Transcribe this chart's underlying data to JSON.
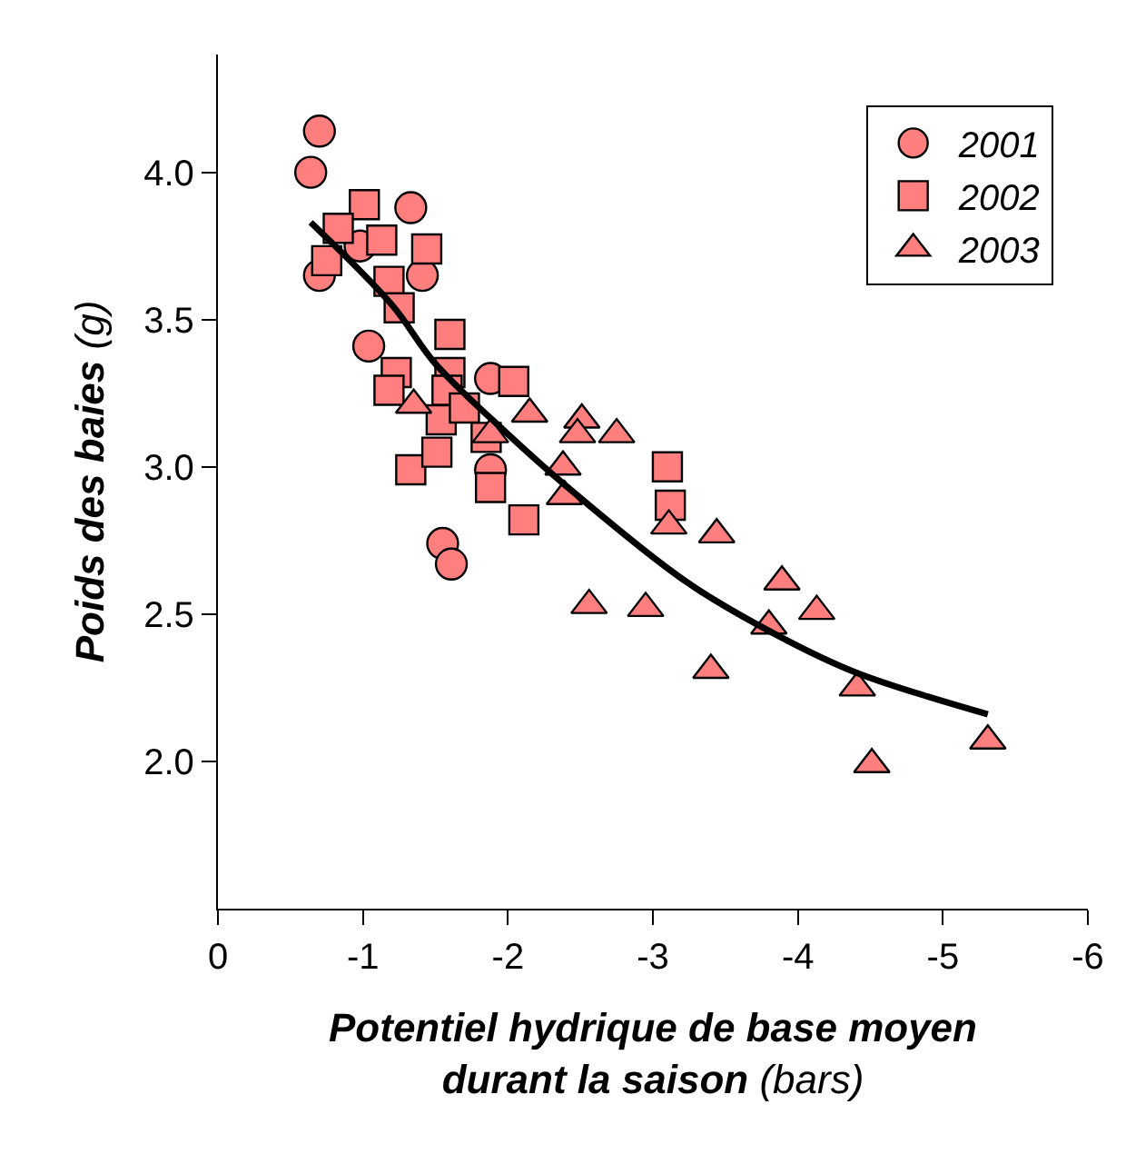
{
  "chart_data": {
    "type": "scatter",
    "xlabel": "Potentiel hydrique de base moyen durant la saison (bars)",
    "ylabel": "Poids des baies (g)",
    "xlim": [
      0,
      -6
    ],
    "xticks": [
      0,
      -1,
      -2,
      -3,
      -4,
      -5,
      -6
    ],
    "ylim": [
      1.5,
      4.4
    ],
    "yticks": [
      {
        "value": 2.0,
        "label": "2.0"
      },
      {
        "value": 2.5,
        "label": "2.5"
      },
      {
        "value": 3.0,
        "label": "3.0"
      },
      {
        "value": 3.5,
        "label": "3.5"
      },
      {
        "value": 4.0,
        "label": "4.0"
      }
    ],
    "legend": "top right",
    "series": [
      {
        "name": "2001",
        "color": "#ff7f7f",
        "marker": "circle",
        "x": [
          -0.64,
          -0.7,
          -0.7,
          -1.04,
          -1.33,
          -1.41,
          -1.55,
          -1.61,
          -1.88,
          -1.88,
          -0.98
        ],
        "values": [
          4.0,
          4.14,
          3.65,
          3.41,
          3.88,
          3.65,
          2.74,
          2.67,
          3.3,
          2.99,
          3.75
        ]
      },
      {
        "name": "2002",
        "color": "#ff7f7f",
        "marker": "square",
        "x": [
          -1.01,
          -0.83,
          -1.13,
          -1.18,
          -1.25,
          -1.44,
          -1.6,
          -1.6,
          -1.23,
          -1.18,
          -1.33,
          -1.54,
          -1.58,
          -1.7,
          -2.04,
          -1.85,
          -1.88,
          -2.11,
          -3.1,
          -3.12,
          -1.51,
          -0.75
        ],
        "values": [
          3.89,
          3.81,
          3.77,
          3.63,
          3.54,
          3.74,
          3.45,
          3.32,
          3.32,
          3.26,
          2.99,
          3.16,
          3.26,
          3.2,
          3.29,
          3.1,
          2.93,
          2.82,
          3.0,
          2.87,
          3.05,
          3.7
        ]
      },
      {
        "name": "2003",
        "color": "#ff7f7f",
        "marker": "triangle",
        "x": [
          -2.15,
          -2.51,
          -2.48,
          -2.75,
          -2.38,
          -2.39,
          -3.11,
          -3.44,
          -3.89,
          -4.13,
          -3.8,
          -2.56,
          -2.95,
          -3.4,
          -4.41,
          -5.31,
          -4.51,
          -1.35,
          -1.88
        ],
        "values": [
          3.18,
          3.16,
          3.11,
          3.11,
          3.0,
          2.9,
          2.8,
          2.77,
          2.61,
          2.51,
          2.46,
          2.53,
          2.52,
          2.31,
          2.25,
          2.07,
          1.99,
          3.21,
          3.11
        ]
      },
      {
        "type": "line",
        "color": "#000000",
        "marker": "none",
        "line_style": "solid",
        "x": [
          -0.64,
          -1.2,
          -1.5,
          -1.98,
          -2.39,
          -3.23,
          -3.89,
          -4.41,
          -5.31
        ],
        "values": [
          3.83,
          3.55,
          3.35,
          3.12,
          2.94,
          2.61,
          2.42,
          2.3,
          2.16
        ]
      }
    ]
  }
}
